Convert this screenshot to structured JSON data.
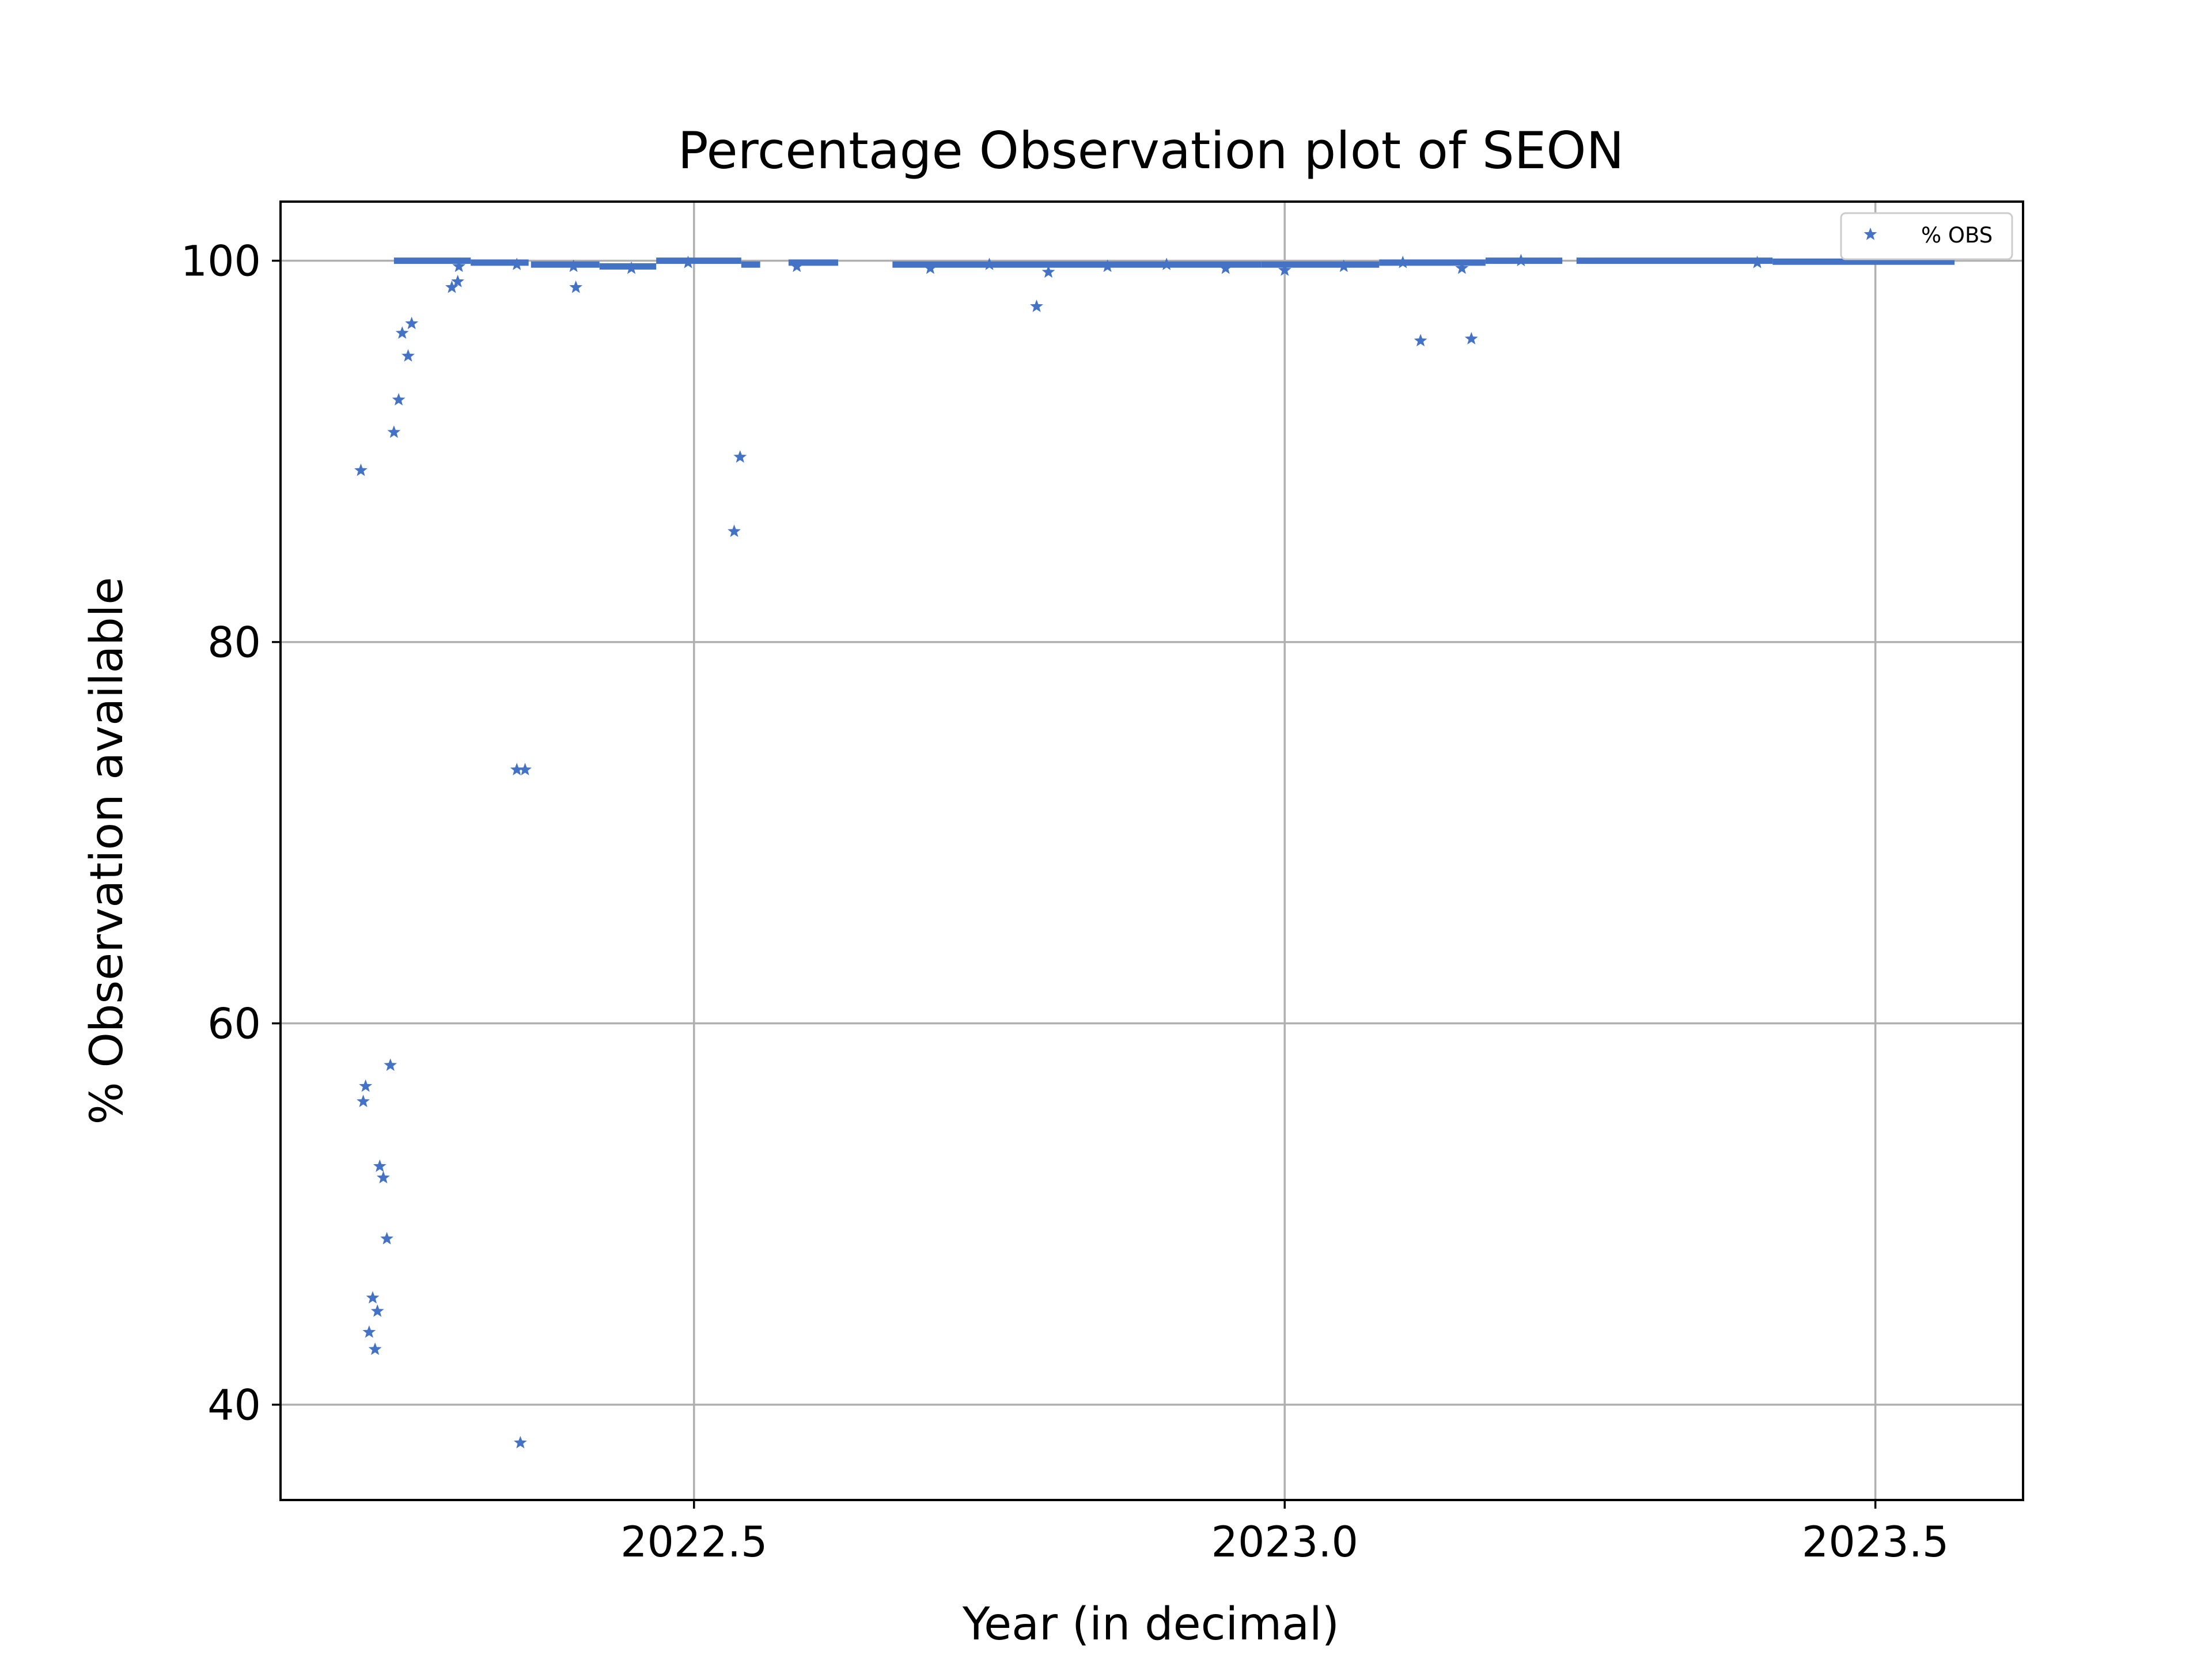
{
  "chart_data": {
    "type": "scatter",
    "title": "Percentage Observation plot of SEON",
    "xlabel": "Year (in decimal)",
    "ylabel": "% Observation available",
    "xlim": [
      2022.15,
      2023.625
    ],
    "ylim": [
      35.0,
      103.1
    ],
    "xticks": [
      2022.5,
      2023.0,
      2023.5
    ],
    "xtick_labels": [
      "2022.5",
      "2023.0",
      "2023.5"
    ],
    "yticks": [
      40,
      60,
      80,
      100
    ],
    "ytick_labels": [
      "40",
      "60",
      "80",
      "100"
    ],
    "grid": true,
    "legend": {
      "position": "top-right",
      "entries": [
        "% OBS"
      ]
    },
    "marker": "star",
    "color": "#4472c4",
    "series": [
      {
        "name": "% OBS",
        "points": [
          [
            2022.218,
            89.0
          ],
          [
            2022.22,
            55.9
          ],
          [
            2022.222,
            56.7
          ],
          [
            2022.225,
            43.8
          ],
          [
            2022.228,
            45.6
          ],
          [
            2022.23,
            42.9
          ],
          [
            2022.232,
            44.9
          ],
          [
            2022.234,
            52.5
          ],
          [
            2022.237,
            51.9
          ],
          [
            2022.24,
            48.7
          ],
          [
            2022.243,
            57.8
          ],
          [
            2022.246,
            91.0
          ],
          [
            2022.25,
            92.7
          ],
          [
            2022.253,
            96.2
          ],
          [
            2022.258,
            95.0
          ],
          [
            2022.261,
            96.7
          ],
          [
            2022.295,
            98.6
          ],
          [
            2022.3,
            98.9
          ],
          [
            2022.35,
            73.3
          ],
          [
            2022.353,
            38.0
          ],
          [
            2022.357,
            73.3
          ],
          [
            2022.4,
            98.6
          ],
          [
            2022.534,
            85.8
          ],
          [
            2022.539,
            89.7
          ],
          [
            2022.79,
            97.6
          ],
          [
            2023.115,
            95.8
          ],
          [
            2023.158,
            95.9
          ],
          [
            2022.301,
            99.7
          ],
          [
            2022.35,
            99.8
          ],
          [
            2022.398,
            99.7
          ],
          [
            2022.447,
            99.6
          ],
          [
            2022.495,
            99.9
          ],
          [
            2022.587,
            99.7
          ],
          [
            2022.7,
            99.6
          ],
          [
            2022.75,
            99.8
          ],
          [
            2022.8,
            99.4
          ],
          [
            2022.85,
            99.7
          ],
          [
            2022.9,
            99.8
          ],
          [
            2022.95,
            99.6
          ],
          [
            2023.0,
            99.5
          ],
          [
            2023.05,
            99.7
          ],
          [
            2023.1,
            99.9
          ],
          [
            2023.15,
            99.6
          ],
          [
            2023.2,
            100.0
          ],
          [
            2023.4,
            99.9
          ]
        ],
        "segments": [
          [
            2022.246,
            2022.311,
            100.0
          ],
          [
            2022.311,
            2022.36,
            99.9
          ],
          [
            2022.362,
            2022.42,
            99.8
          ],
          [
            2022.42,
            2022.468,
            99.7
          ],
          [
            2022.468,
            2022.54,
            100.0
          ],
          [
            2022.54,
            2022.556,
            99.8
          ],
          [
            2022.58,
            2022.622,
            99.9
          ],
          [
            2022.668,
            2022.9,
            99.8
          ],
          [
            2022.9,
            2022.98,
            99.8
          ],
          [
            2022.98,
            2023.08,
            99.8
          ],
          [
            2023.08,
            2023.17,
            99.9
          ],
          [
            2023.17,
            2023.235,
            100.0
          ],
          [
            2023.247,
            2023.413,
            100.0
          ],
          [
            2023.413,
            2023.567,
            99.95
          ]
        ]
      }
    ]
  }
}
